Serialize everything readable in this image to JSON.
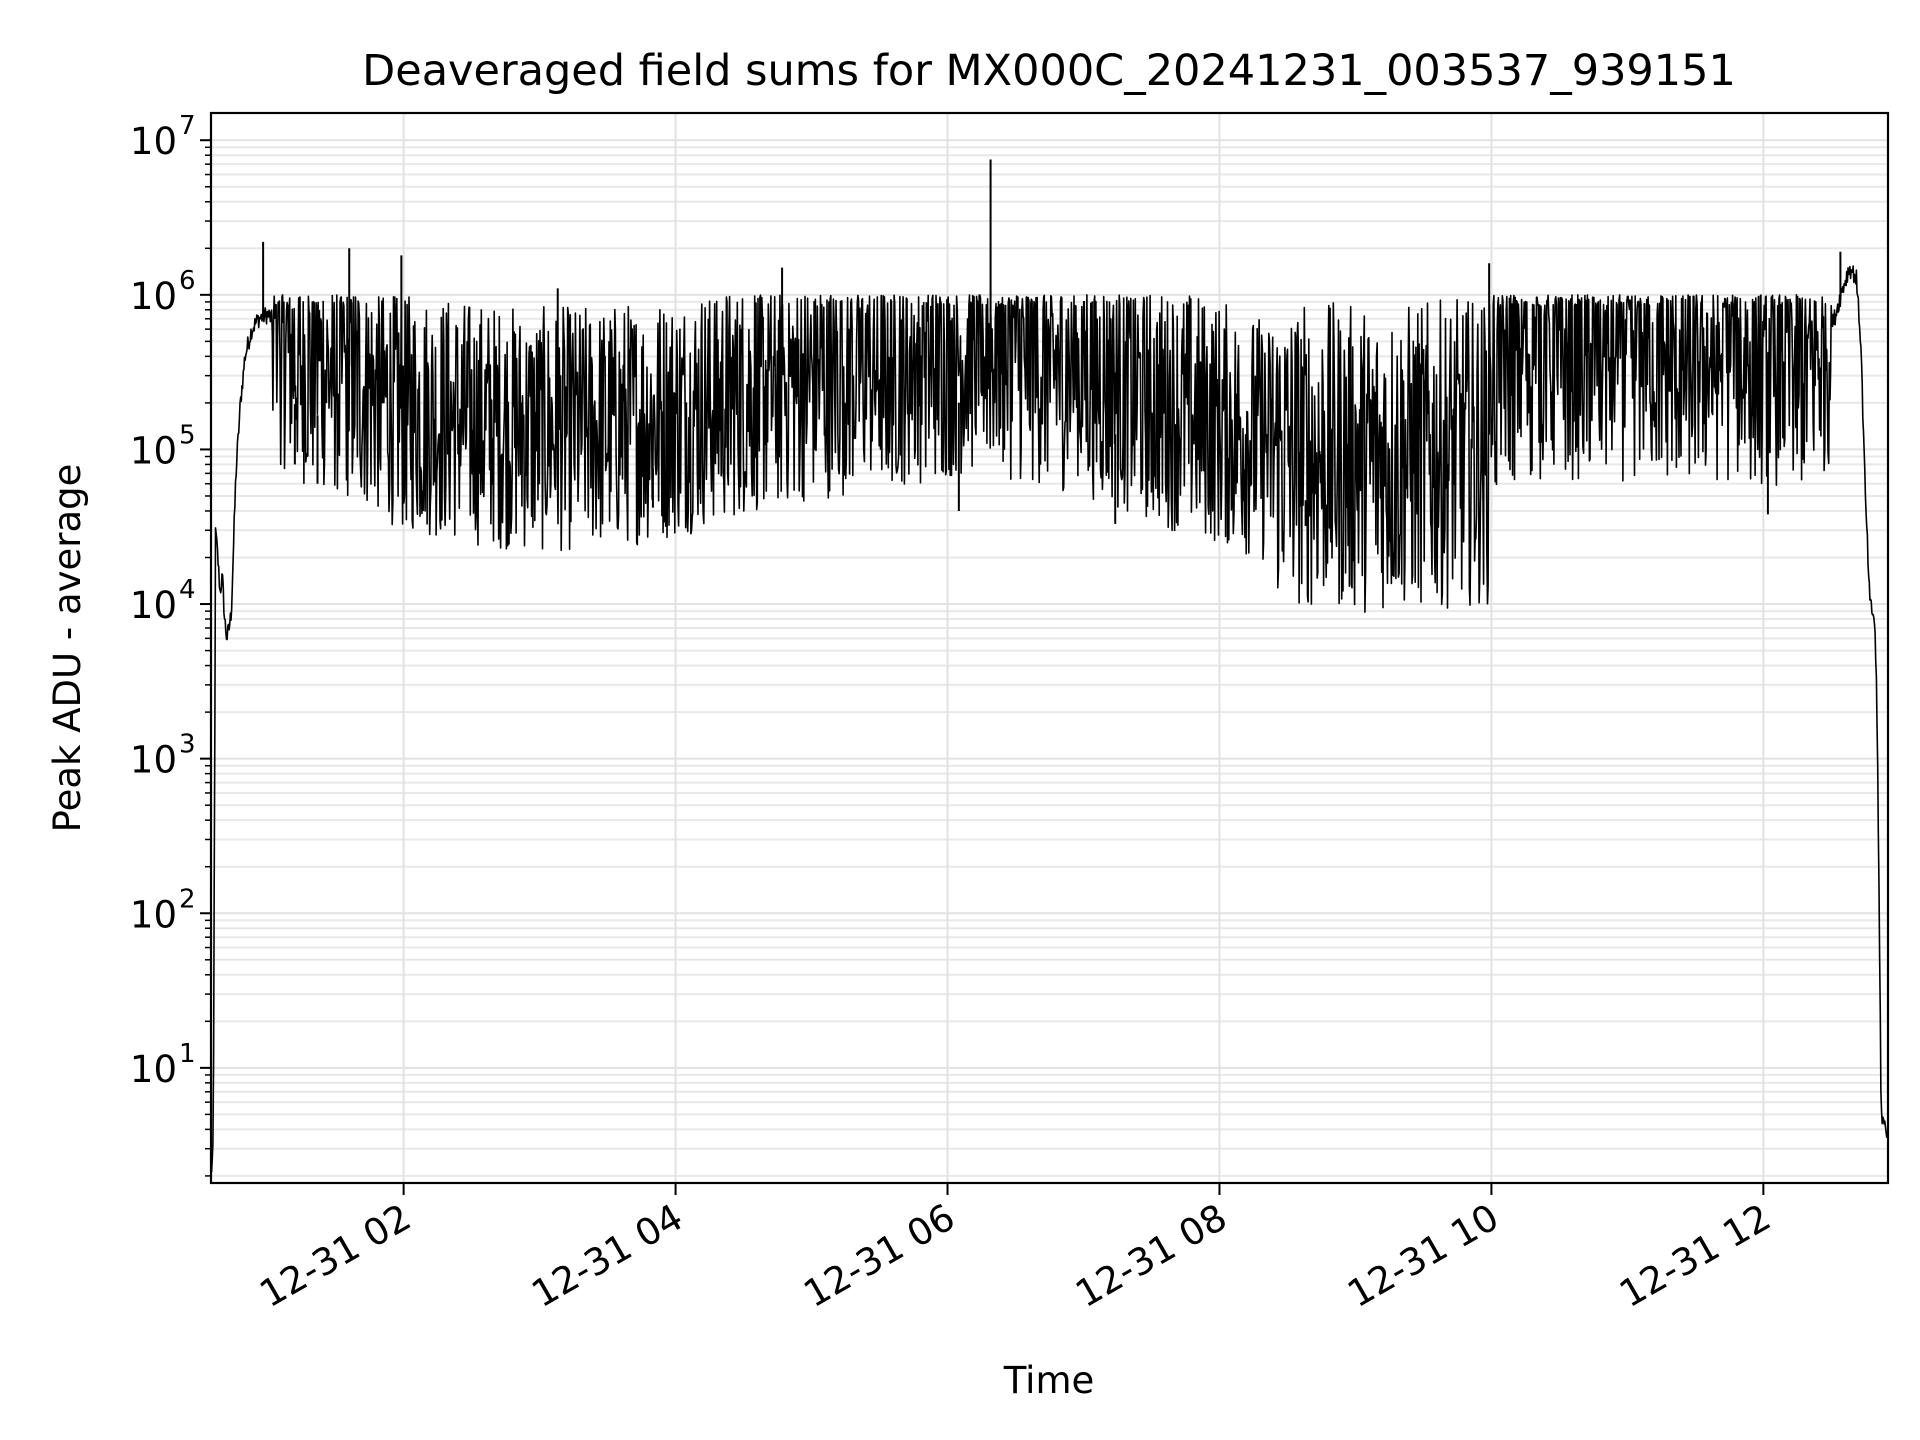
{
  "chart_data": {
    "type": "line",
    "title": "Deaveraged field sums for MX000C_20241231_003537_939151",
    "xlabel": "Time",
    "ylabel": "Peak ADU - average",
    "yscale": "log",
    "ylim": [
      1.8,
      15000000
    ],
    "xlim": [
      "2024-12-31 00:35",
      "2024-12-31 12:55"
    ],
    "grid": true,
    "line_color": "#000000",
    "x_ticks": [
      {
        "value": "2024-12-31 02:00",
        "label": "12-31 02"
      },
      {
        "value": "2024-12-31 04:00",
        "label": "12-31 04"
      },
      {
        "value": "2024-12-31 06:00",
        "label": "12-31 06"
      },
      {
        "value": "2024-12-31 08:00",
        "label": "12-31 08"
      },
      {
        "value": "2024-12-31 10:00",
        "label": "12-31 10"
      },
      {
        "value": "2024-12-31 12:00",
        "label": "12-31 12"
      }
    ],
    "y_ticks": [
      {
        "value": 10,
        "base": "10",
        "exp": "1"
      },
      {
        "value": 100,
        "base": "10",
        "exp": "2"
      },
      {
        "value": 1000,
        "base": "10",
        "exp": "3"
      },
      {
        "value": 10000,
        "base": "10",
        "exp": "4"
      },
      {
        "value": 100000,
        "base": "10",
        "exp": "5"
      },
      {
        "value": 1000000,
        "base": "10",
        "exp": "6"
      },
      {
        "value": 10000000,
        "base": "10",
        "exp": "7"
      }
    ],
    "series": [
      {
        "x": [
          "2024-12-31 00:35",
          "2024-12-31 00:36",
          "2024-12-31 00:37",
          "2024-12-31 00:38",
          "2024-12-31 00:39",
          "2024-12-31 00:40",
          "2024-12-31 00:41",
          "2024-12-31 00:42",
          "2024-12-31 00:43",
          "2024-12-31 00:44",
          "2024-12-31 00:46",
          "2024-12-31 00:48",
          "2024-12-31 00:50",
          "2024-12-31 00:53",
          "2024-12-31 00:56",
          "2024-12-31 01:00",
          "2024-12-31 01:05",
          "2024-12-31 01:15",
          "2024-12-31 01:30",
          "2024-12-31 01:45",
          "2024-12-31 02:00",
          "2024-12-31 02:30",
          "2024-12-31 03:00",
          "2024-12-31 03:30",
          "2024-12-31 04:00",
          "2024-12-31 04:30",
          "2024-12-31 05:00",
          "2024-12-31 05:30",
          "2024-12-31 06:00",
          "2024-12-31 06:18",
          "2024-12-31 06:30",
          "2024-12-31 07:00",
          "2024-12-31 07:30",
          "2024-12-31 08:00",
          "2024-12-31 08:30",
          "2024-12-31 09:00",
          "2024-12-31 09:30",
          "2024-12-31 09:59",
          "2024-12-31 10:00",
          "2024-12-31 10:30",
          "2024-12-31 11:00",
          "2024-12-31 11:30",
          "2024-12-31 12:00",
          "2024-12-31 12:20",
          "2024-12-31 12:30",
          "2024-12-31 12:35",
          "2024-12-31 12:38",
          "2024-12-31 12:41",
          "2024-12-31 12:43",
          "2024-12-31 12:45",
          "2024-12-31 12:47",
          "2024-12-31 12:48",
          "2024-12-31 12:49",
          "2024-12-31 12:50",
          "2024-12-31 12:51",
          "2024-12-31 12:52",
          "2024-12-31 12:54"
        ],
        "y": [
          2,
          3,
          30000,
          20000,
          12000,
          15000,
          8000,
          6000,
          7000,
          9000,
          70000,
          200000,
          400000,
          600000,
          700000,
          750000,
          600000,
          450000,
          380000,
          300000,
          220000,
          180000,
          160000,
          170000,
          200000,
          280000,
          350000,
          420000,
          480000,
          560000,
          470000,
          380000,
          250000,
          180000,
          120000,
          110000,
          115000,
          125000,
          450000,
          480000,
          470000,
          460000,
          450000,
          400000,
          600000,
          1100000,
          1500000,
          1300000,
          500000,
          50000,
          10000,
          9000,
          8000,
          3000,
          150,
          5,
          4
        ]
      }
    ],
    "spikes": [
      {
        "x": "2024-12-31 00:58",
        "y": 2200000
      },
      {
        "x": "2024-12-31 01:36",
        "y": 2000000
      },
      {
        "x": "2024-12-31 01:59",
        "y": 1800000
      },
      {
        "x": "2024-12-31 03:08",
        "y": 1100000
      },
      {
        "x": "2024-12-31 04:47",
        "y": 1500000
      },
      {
        "x": "2024-12-31 06:19",
        "y": 7500000
      },
      {
        "x": "2024-12-31 09:59",
        "y": 1600000
      },
      {
        "x": "2024-12-31 12:34",
        "y": 1900000
      }
    ],
    "dips": [
      {
        "x": "2024-12-31 01:12",
        "y": 80000
      },
      {
        "x": "2024-12-31 01:22",
        "y": 60000
      },
      {
        "x": "2024-12-31 03:50",
        "y": 42000
      },
      {
        "x": "2024-12-31 06:05",
        "y": 40000
      },
      {
        "x": "2024-12-31 07:14",
        "y": 33000
      },
      {
        "x": "2024-12-31 08:38",
        "y": 32000
      },
      {
        "x": "2024-12-31 09:35",
        "y": 33000
      },
      {
        "x": "2024-12-31 12:02",
        "y": 38000
      }
    ]
  }
}
